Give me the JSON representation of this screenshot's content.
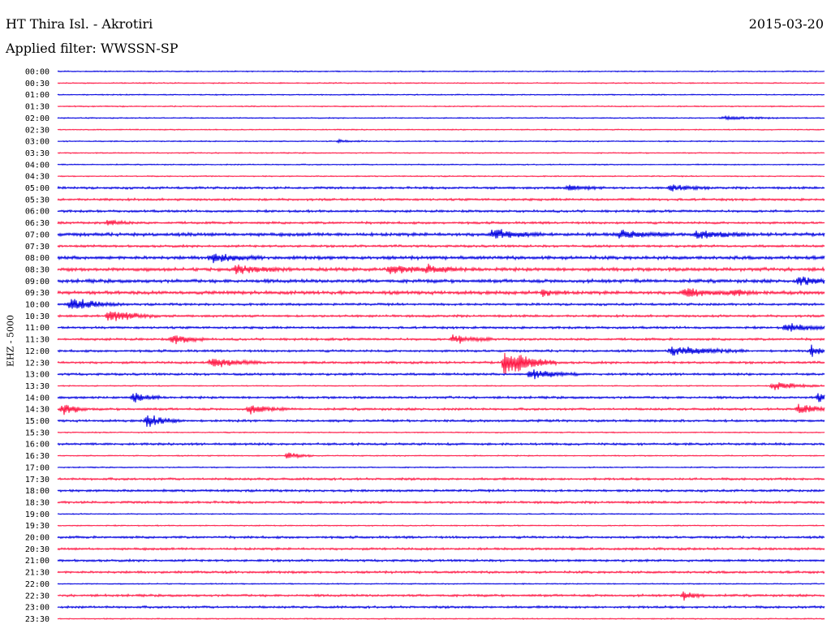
{
  "header": {
    "station": "HT Thira Isl. - Akrotiri",
    "date": "2015-03-20",
    "filter": "Applied filter: WWSSN-SP"
  },
  "axis": {
    "channel_label": "EHZ - 5000"
  },
  "colors": {
    "trace_a": "#0000e0",
    "trace_b": "#ff1744",
    "background": "#ffffff",
    "text": "#000000"
  },
  "rows": [
    {
      "time": "00:00",
      "color": "blue"
    },
    {
      "time": "00:30",
      "color": "red"
    },
    {
      "time": "01:00",
      "color": "blue"
    },
    {
      "time": "01:30",
      "color": "red"
    },
    {
      "time": "02:00",
      "color": "blue"
    },
    {
      "time": "02:30",
      "color": "red"
    },
    {
      "time": "03:00",
      "color": "blue"
    },
    {
      "time": "03:30",
      "color": "red"
    },
    {
      "time": "04:00",
      "color": "blue"
    },
    {
      "time": "04:30",
      "color": "red"
    },
    {
      "time": "05:00",
      "color": "blue"
    },
    {
      "time": "05:30",
      "color": "red"
    },
    {
      "time": "06:00",
      "color": "blue"
    },
    {
      "time": "06:30",
      "color": "red"
    },
    {
      "time": "07:00",
      "color": "blue"
    },
    {
      "time": "07:30",
      "color": "red"
    },
    {
      "time": "08:00",
      "color": "blue"
    },
    {
      "time": "08:30",
      "color": "red"
    },
    {
      "time": "09:00",
      "color": "blue"
    },
    {
      "time": "09:30",
      "color": "red"
    },
    {
      "time": "10:00",
      "color": "blue"
    },
    {
      "time": "10:30",
      "color": "red"
    },
    {
      "time": "11:00",
      "color": "blue"
    },
    {
      "time": "11:30",
      "color": "red"
    },
    {
      "time": "12:00",
      "color": "blue"
    },
    {
      "time": "12:30",
      "color": "red"
    },
    {
      "time": "13:00",
      "color": "blue"
    },
    {
      "time": "13:30",
      "color": "red"
    },
    {
      "time": "14:00",
      "color": "blue"
    },
    {
      "time": "14:30",
      "color": "red"
    },
    {
      "time": "15:00",
      "color": "blue"
    },
    {
      "time": "15:30",
      "color": "red"
    },
    {
      "time": "16:00",
      "color": "blue"
    },
    {
      "time": "16:30",
      "color": "red"
    },
    {
      "time": "17:00",
      "color": "blue"
    },
    {
      "time": "17:30",
      "color": "red"
    },
    {
      "time": "18:00",
      "color": "blue"
    },
    {
      "time": "18:30",
      "color": "red"
    },
    {
      "time": "19:00",
      "color": "blue"
    },
    {
      "time": "19:30",
      "color": "red"
    },
    {
      "time": "20:00",
      "color": "blue"
    },
    {
      "time": "20:30",
      "color": "red"
    },
    {
      "time": "21:00",
      "color": "blue"
    },
    {
      "time": "21:30",
      "color": "red"
    },
    {
      "time": "22:00",
      "color": "blue"
    },
    {
      "time": "22:30",
      "color": "red"
    },
    {
      "time": "23:00",
      "color": "blue"
    },
    {
      "time": "23:30",
      "color": "red"
    }
  ],
  "activity": {
    "noise_levels": [
      1,
      1,
      1,
      1,
      1,
      1,
      1,
      1,
      1,
      1,
      2,
      2,
      2,
      2,
      3,
      2,
      3,
      3,
      3,
      3,
      2,
      2,
      2,
      2,
      2,
      2,
      2,
      1,
      2,
      2,
      2,
      1,
      2,
      1,
      1,
      2,
      2,
      2,
      1,
      1,
      2,
      2,
      2,
      2,
      1,
      2,
      2,
      1
    ],
    "bursts": [
      {
        "row": 4,
        "minute": 26,
        "amp": 2,
        "dur": 3
      },
      {
        "row": 6,
        "minute": 11,
        "amp": 2,
        "dur": 1
      },
      {
        "row": 10,
        "minute": 20,
        "amp": 4,
        "dur": 1.5
      },
      {
        "row": 10,
        "minute": 24,
        "amp": 5,
        "dur": 1.5
      },
      {
        "row": 13,
        "minute": 2,
        "amp": 5,
        "dur": 1
      },
      {
        "row": 14,
        "minute": 17,
        "amp": 7,
        "dur": 2
      },
      {
        "row": 14,
        "minute": 22,
        "amp": 6,
        "dur": 2
      },
      {
        "row": 14,
        "minute": 25,
        "amp": 6,
        "dur": 2
      },
      {
        "row": 16,
        "minute": 6,
        "amp": 7,
        "dur": 2
      },
      {
        "row": 17,
        "minute": 7,
        "amp": 6,
        "dur": 2
      },
      {
        "row": 17,
        "minute": 13,
        "amp": 6,
        "dur": 2
      },
      {
        "row": 17,
        "minute": 14.5,
        "amp": 6,
        "dur": 1.5
      },
      {
        "row": 18,
        "minute": 29,
        "amp": 6,
        "dur": 2
      },
      {
        "row": 19,
        "minute": 19,
        "amp": 6,
        "dur": 1
      },
      {
        "row": 19,
        "minute": 24.5,
        "amp": 7,
        "dur": 2
      },
      {
        "row": 19,
        "minute": 26.5,
        "amp": 6,
        "dur": 1
      },
      {
        "row": 20,
        "minute": 0.5,
        "amp": 9,
        "dur": 2
      },
      {
        "row": 21,
        "minute": 2,
        "amp": 9,
        "dur": 2
      },
      {
        "row": 22,
        "minute": 28.5,
        "amp": 6,
        "dur": 2
      },
      {
        "row": 23,
        "minute": 4.5,
        "amp": 7,
        "dur": 1.5
      },
      {
        "row": 23,
        "minute": 15.5,
        "amp": 7,
        "dur": 1.5
      },
      {
        "row": 24,
        "minute": 24,
        "amp": 7,
        "dur": 3
      },
      {
        "row": 24,
        "minute": 29.5,
        "amp": 8,
        "dur": 1
      },
      {
        "row": 25,
        "minute": 6,
        "amp": 8,
        "dur": 2
      },
      {
        "row": 25,
        "minute": 17.5,
        "amp": 22,
        "dur": 2
      },
      {
        "row": 26,
        "minute": 18.5,
        "amp": 8,
        "dur": 2
      },
      {
        "row": 27,
        "minute": 28,
        "amp": 6,
        "dur": 2
      },
      {
        "row": 28,
        "minute": 3,
        "amp": 8,
        "dur": 1
      },
      {
        "row": 28,
        "minute": 29.8,
        "amp": 10,
        "dur": 0.5
      },
      {
        "row": 29,
        "minute": 0.2,
        "amp": 10,
        "dur": 1
      },
      {
        "row": 29,
        "minute": 7.5,
        "amp": 7,
        "dur": 1.5
      },
      {
        "row": 29,
        "minute": 29,
        "amp": 7,
        "dur": 1.5
      },
      {
        "row": 30,
        "minute": 3.5,
        "amp": 9,
        "dur": 1.5
      },
      {
        "row": 33,
        "minute": 9,
        "amp": 5,
        "dur": 1
      },
      {
        "row": 45,
        "minute": 24.5,
        "amp": 6,
        "dur": 1
      }
    ]
  }
}
